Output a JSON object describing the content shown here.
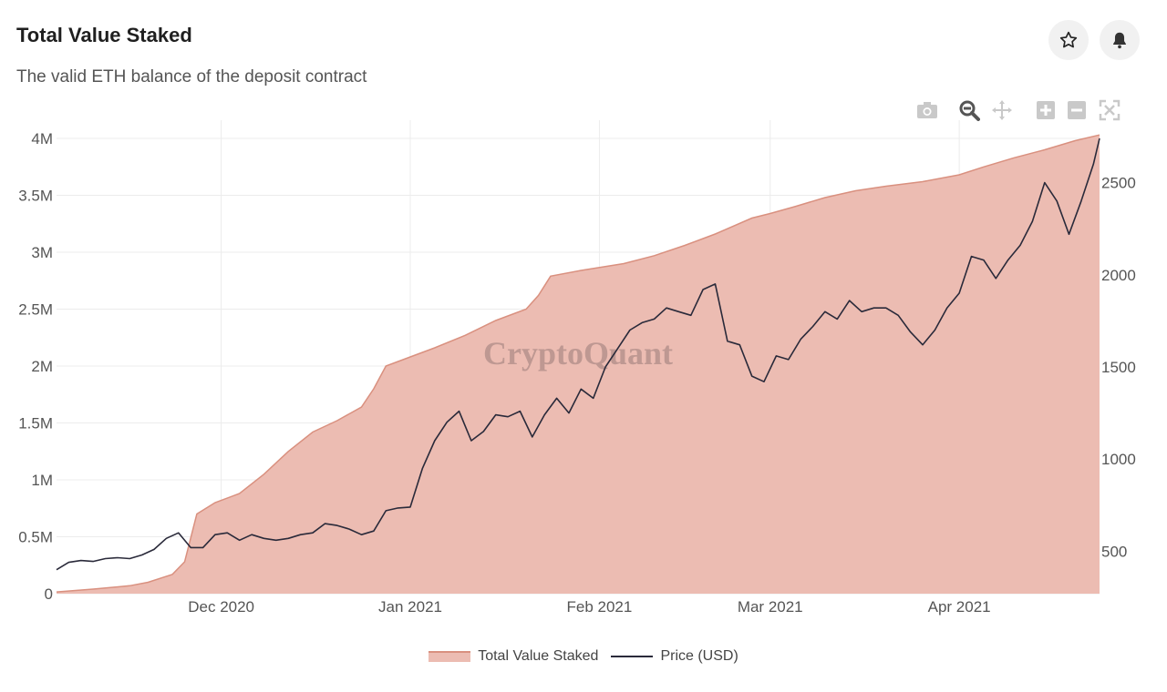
{
  "header": {
    "title": "Total Value Staked",
    "subtitle": "The valid ETH balance of the deposit contract",
    "star_icon": "star-icon",
    "bell_icon": "bell-icon"
  },
  "modebar": [
    "camera-icon",
    "zoom-icon",
    "pan-icon",
    "zoom-in-icon",
    "zoom-out-icon",
    "autoscale-icon"
  ],
  "watermark": "CryptoQuant",
  "colors": {
    "area_fill": "#ecbcb2",
    "area_line": "#d9907f",
    "price_line": "#2a2a3a",
    "grid": "#ececec"
  },
  "chart_data": {
    "type": "area",
    "x_axis": {
      "ticks": [
        {
          "label": "Dec 2020",
          "date": "2020-12-01"
        },
        {
          "label": "Jan 2021",
          "date": "2021-01-01"
        },
        {
          "label": "Feb 2021",
          "date": "2021-02-01"
        },
        {
          "label": "Mar 2021",
          "date": "2021-03-01"
        },
        {
          "label": "Apr 2021",
          "date": "2021-04-01"
        }
      ],
      "range": [
        "2020-11-04",
        "2021-04-24"
      ]
    },
    "y_left": {
      "range": [
        0,
        4000000
      ],
      "ticks": [
        {
          "v": 0,
          "label": "0"
        },
        {
          "v": 500000,
          "label": "0.5M"
        },
        {
          "v": 1000000,
          "label": "1M"
        },
        {
          "v": 1500000,
          "label": "1.5M"
        },
        {
          "v": 2000000,
          "label": "2M"
        },
        {
          "v": 2500000,
          "label": "2.5M"
        },
        {
          "v": 3000000,
          "label": "3M"
        },
        {
          "v": 3500000,
          "label": "3.5M"
        },
        {
          "v": 4000000,
          "label": "4M"
        }
      ]
    },
    "y_right": {
      "range": [
        270,
        2740
      ],
      "ticks": [
        {
          "v": 500,
          "label": "500"
        },
        {
          "v": 1000,
          "label": "1000"
        },
        {
          "v": 1500,
          "label": "1500"
        },
        {
          "v": 2000,
          "label": "2000"
        },
        {
          "v": 2500,
          "label": "2500"
        }
      ]
    },
    "series": [
      {
        "name": "Total Value Staked",
        "axis": "left",
        "points": [
          [
            "2020-11-04",
            15000
          ],
          [
            "2020-11-10",
            40000
          ],
          [
            "2020-11-16",
            70000
          ],
          [
            "2020-11-19",
            100000
          ],
          [
            "2020-11-23",
            170000
          ],
          [
            "2020-11-25",
            280000
          ],
          [
            "2020-11-27",
            700000
          ],
          [
            "2020-11-30",
            800000
          ],
          [
            "2020-12-04",
            880000
          ],
          [
            "2020-12-08",
            1050000
          ],
          [
            "2020-12-12",
            1250000
          ],
          [
            "2020-12-16",
            1420000
          ],
          [
            "2020-12-20",
            1520000
          ],
          [
            "2020-12-24",
            1640000
          ],
          [
            "2020-12-26",
            1800000
          ],
          [
            "2020-12-28",
            2000000
          ],
          [
            "2021-01-01",
            2080000
          ],
          [
            "2021-01-05",
            2160000
          ],
          [
            "2021-01-10",
            2270000
          ],
          [
            "2021-01-15",
            2400000
          ],
          [
            "2021-01-20",
            2500000
          ],
          [
            "2021-01-22",
            2620000
          ],
          [
            "2021-01-24",
            2790000
          ],
          [
            "2021-01-29",
            2840000
          ],
          [
            "2021-02-05",
            2900000
          ],
          [
            "2021-02-10",
            2970000
          ],
          [
            "2021-02-15",
            3060000
          ],
          [
            "2021-02-20",
            3160000
          ],
          [
            "2021-02-26",
            3300000
          ],
          [
            "2021-03-01",
            3340000
          ],
          [
            "2021-03-05",
            3400000
          ],
          [
            "2021-03-10",
            3480000
          ],
          [
            "2021-03-15",
            3540000
          ],
          [
            "2021-03-20",
            3580000
          ],
          [
            "2021-03-26",
            3620000
          ],
          [
            "2021-04-01",
            3680000
          ],
          [
            "2021-04-05",
            3750000
          ],
          [
            "2021-04-10",
            3830000
          ],
          [
            "2021-04-15",
            3900000
          ],
          [
            "2021-04-20",
            3980000
          ],
          [
            "2021-04-24",
            4030000
          ]
        ]
      },
      {
        "name": "Price (USD)",
        "axis": "right",
        "points": [
          [
            "2020-11-04",
            400
          ],
          [
            "2020-11-06",
            440
          ],
          [
            "2020-11-08",
            450
          ],
          [
            "2020-11-10",
            445
          ],
          [
            "2020-11-12",
            460
          ],
          [
            "2020-11-14",
            465
          ],
          [
            "2020-11-16",
            460
          ],
          [
            "2020-11-18",
            480
          ],
          [
            "2020-11-20",
            510
          ],
          [
            "2020-11-22",
            570
          ],
          [
            "2020-11-24",
            600
          ],
          [
            "2020-11-26",
            520
          ],
          [
            "2020-11-28",
            520
          ],
          [
            "2020-11-30",
            590
          ],
          [
            "2020-12-02",
            600
          ],
          [
            "2020-12-04",
            560
          ],
          [
            "2020-12-06",
            590
          ],
          [
            "2020-12-08",
            570
          ],
          [
            "2020-12-10",
            560
          ],
          [
            "2020-12-12",
            570
          ],
          [
            "2020-12-14",
            590
          ],
          [
            "2020-12-16",
            600
          ],
          [
            "2020-12-18",
            650
          ],
          [
            "2020-12-20",
            640
          ],
          [
            "2020-12-22",
            620
          ],
          [
            "2020-12-24",
            590
          ],
          [
            "2020-12-26",
            610
          ],
          [
            "2020-12-28",
            720
          ],
          [
            "2020-12-30",
            735
          ],
          [
            "2021-01-01",
            740
          ],
          [
            "2021-01-03",
            950
          ],
          [
            "2021-01-05",
            1100
          ],
          [
            "2021-01-07",
            1200
          ],
          [
            "2021-01-09",
            1260
          ],
          [
            "2021-01-11",
            1100
          ],
          [
            "2021-01-13",
            1150
          ],
          [
            "2021-01-15",
            1240
          ],
          [
            "2021-01-17",
            1230
          ],
          [
            "2021-01-19",
            1260
          ],
          [
            "2021-01-21",
            1120
          ],
          [
            "2021-01-23",
            1240
          ],
          [
            "2021-01-25",
            1330
          ],
          [
            "2021-01-27",
            1250
          ],
          [
            "2021-01-29",
            1380
          ],
          [
            "2021-01-31",
            1330
          ],
          [
            "2021-02-02",
            1500
          ],
          [
            "2021-02-04",
            1600
          ],
          [
            "2021-02-06",
            1700
          ],
          [
            "2021-02-08",
            1740
          ],
          [
            "2021-02-10",
            1760
          ],
          [
            "2021-02-12",
            1820
          ],
          [
            "2021-02-14",
            1800
          ],
          [
            "2021-02-16",
            1780
          ],
          [
            "2021-02-18",
            1920
          ],
          [
            "2021-02-20",
            1950
          ],
          [
            "2021-02-22",
            1640
          ],
          [
            "2021-02-24",
            1620
          ],
          [
            "2021-02-26",
            1450
          ],
          [
            "2021-02-28",
            1420
          ],
          [
            "2021-03-02",
            1560
          ],
          [
            "2021-03-04",
            1540
          ],
          [
            "2021-03-06",
            1650
          ],
          [
            "2021-03-08",
            1720
          ],
          [
            "2021-03-10",
            1800
          ],
          [
            "2021-03-12",
            1760
          ],
          [
            "2021-03-14",
            1860
          ],
          [
            "2021-03-16",
            1800
          ],
          [
            "2021-03-18",
            1820
          ],
          [
            "2021-03-20",
            1820
          ],
          [
            "2021-03-22",
            1780
          ],
          [
            "2021-03-24",
            1690
          ],
          [
            "2021-03-26",
            1620
          ],
          [
            "2021-03-28",
            1700
          ],
          [
            "2021-03-30",
            1820
          ],
          [
            "2021-04-01",
            1900
          ],
          [
            "2021-04-03",
            2100
          ],
          [
            "2021-04-05",
            2080
          ],
          [
            "2021-04-07",
            1980
          ],
          [
            "2021-04-09",
            2080
          ],
          [
            "2021-04-11",
            2160
          ],
          [
            "2021-04-13",
            2290
          ],
          [
            "2021-04-15",
            2500
          ],
          [
            "2021-04-17",
            2400
          ],
          [
            "2021-04-19",
            2220
          ],
          [
            "2021-04-21",
            2400
          ],
          [
            "2021-04-23",
            2600
          ],
          [
            "2021-04-24",
            2740
          ]
        ]
      }
    ],
    "legend": {
      "placement": "bottom-center",
      "items": [
        "Total Value Staked",
        "Price (USD)"
      ]
    },
    "grid": true
  }
}
